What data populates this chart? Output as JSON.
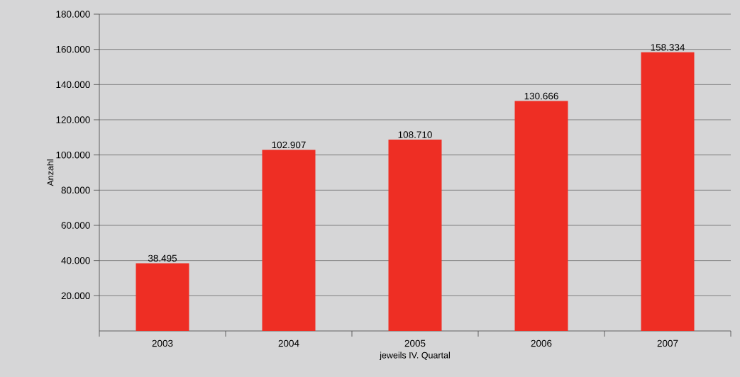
{
  "chart_data": {
    "type": "bar",
    "xlabel": "jeweils IV. Quartal",
    "ylabel": "Anzahl",
    "categories": [
      "2003",
      "2004",
      "2005",
      "2006",
      "2007"
    ],
    "values": [
      38495,
      102907,
      108710,
      130666,
      158334
    ],
    "value_labels": [
      "38.495",
      "102.907",
      "108.710",
      "130.666",
      "158.334"
    ],
    "color": "#ee2e24",
    "ylim": [
      0,
      180000
    ],
    "yticks": [
      {
        "value": 20000,
        "label": "20.000"
      },
      {
        "value": 40000,
        "label": "40.000"
      },
      {
        "value": 60000,
        "label": "60.000"
      },
      {
        "value": 80000,
        "label": "80.000"
      },
      {
        "value": 100000,
        "label": "100.000"
      },
      {
        "value": 120000,
        "label": "120.000"
      },
      {
        "value": 140000,
        "label": "140.000"
      },
      {
        "value": 160000,
        "label": "160.000"
      },
      {
        "value": 180000,
        "label": "180.000"
      }
    ],
    "grid": "y"
  }
}
